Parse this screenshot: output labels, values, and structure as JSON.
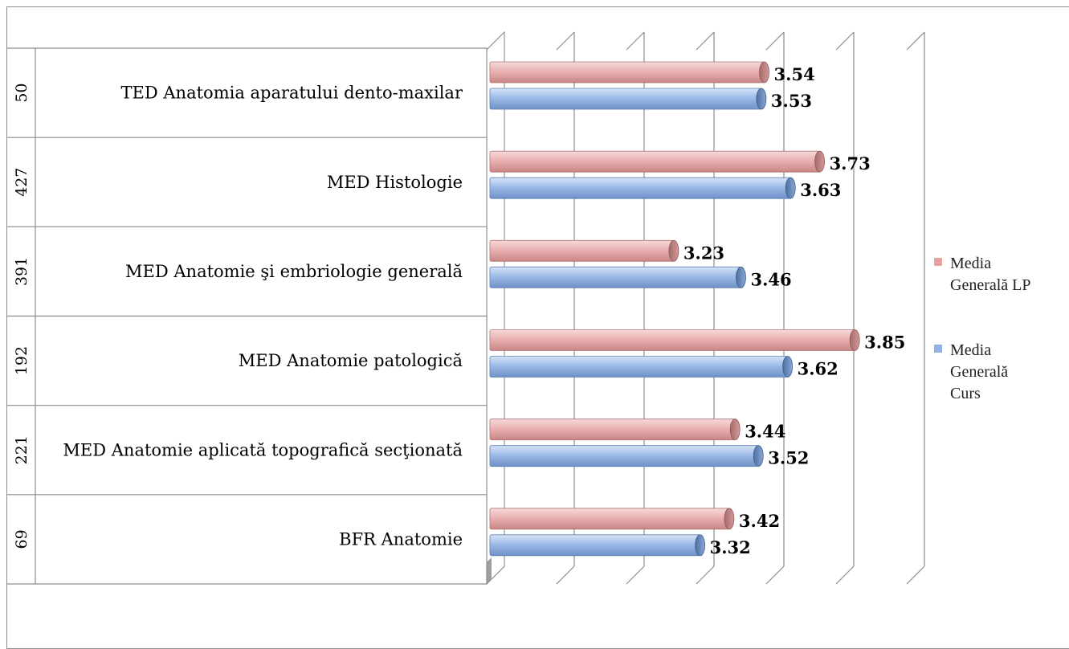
{
  "chart_data": {
    "type": "bar",
    "orientation": "horizontal",
    "title": "",
    "categories": [
      "TED Anatomia aparatului dento-maxilar",
      "MED Histologie",
      "MED Anatomie şi embriologie generală",
      "MED Anatomie patologică",
      "MED Anatomie aplicată topografică secţionată",
      "BFR Anatomie"
    ],
    "counts": [
      "50",
      "427",
      "391",
      "192",
      "221",
      "69"
    ],
    "series": [
      {
        "name": "Media Generală LP",
        "values": [
          3.54,
          3.73,
          3.23,
          3.85,
          3.44,
          3.42
        ],
        "labels": [
          "3.54",
          "3.73",
          "3.23",
          "3.85",
          "3.44",
          "3.42"
        ],
        "color": "#e6a3a3"
      },
      {
        "name": "Media Generală Curs",
        "values": [
          3.53,
          3.63,
          3.46,
          3.62,
          3.52,
          3.32
        ],
        "labels": [
          "3.53",
          "3.63",
          "3.46",
          "3.62",
          "3.52",
          "3.32"
        ],
        "color": "#8fb1e3"
      }
    ],
    "legend": {
      "position": "right",
      "entries": [
        {
          "lines": [
            "Media",
            "Generală LP"
          ],
          "color": "#e6a3a3"
        },
        {
          "lines": [
            "Media",
            "Generală",
            "Curs"
          ],
          "color": "#8fb1e3"
        }
      ]
    },
    "xlim": [
      2.6,
      4.1
    ],
    "grid": true,
    "style": "3d-cylinder"
  }
}
